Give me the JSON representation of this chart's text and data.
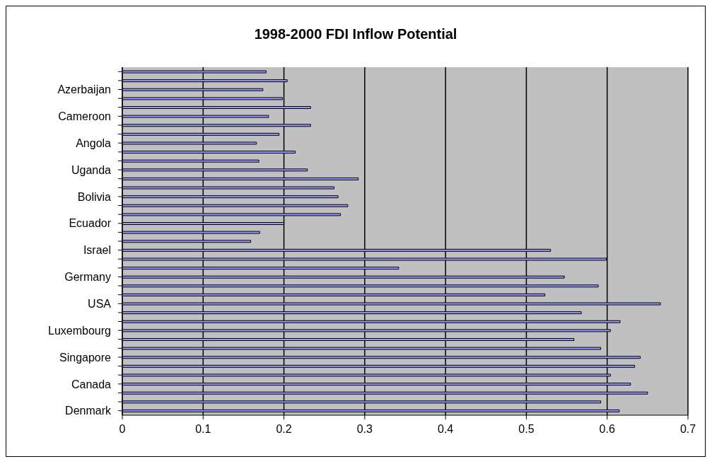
{
  "chart_data": {
    "type": "bar",
    "orientation": "horizontal",
    "title": "1998-2000 FDI Inflow Potential",
    "categories": [
      null,
      null,
      "Azerbaijan",
      null,
      null,
      "Cameroon",
      null,
      null,
      "Angola",
      null,
      null,
      "Uganda",
      null,
      null,
      "Bolivia",
      null,
      null,
      "Ecuador",
      null,
      null,
      "Israel",
      null,
      null,
      "Germany",
      null,
      null,
      "USA",
      null,
      null,
      "Luxembourg",
      null,
      null,
      "Singapore",
      null,
      null,
      "Canada",
      null,
      null,
      "Denmark"
    ],
    "values": [
      0.178,
      0.204,
      0.174,
      0.198,
      0.233,
      0.181,
      0.233,
      0.194,
      0.166,
      0.214,
      0.169,
      0.229,
      0.292,
      0.262,
      0.267,
      0.279,
      0.27,
      0.2,
      0.17,
      0.159,
      0.53,
      0.599,
      0.342,
      0.547,
      0.589,
      0.523,
      0.666,
      0.568,
      0.616,
      0.604,
      0.559,
      0.592,
      0.641,
      0.634,
      0.604,
      0.629,
      0.65,
      0.592,
      0.615
    ],
    "color": "#9999ff",
    "xlim": [
      0,
      0.7
    ],
    "xticks": [
      0,
      0.1,
      0.2,
      0.3,
      0.4,
      0.5,
      0.6,
      0.7
    ],
    "grid": "x",
    "legend": false
  }
}
